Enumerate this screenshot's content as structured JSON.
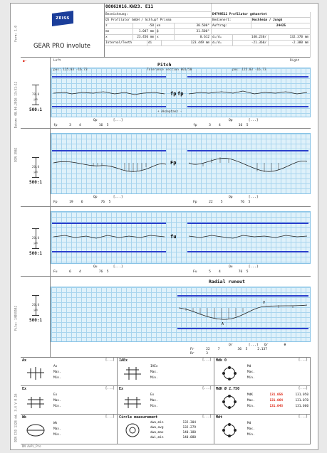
{
  "header": {
    "product": "GEAR PRO involute",
    "logo": "ZEISS",
    "order_id": "08062016.KW23.",
    "order_suffix": "E11",
    "rows": [
      [
        "Bezeichnung:",
        "",
        "D4799511 Profilator gehaertet"
      ],
      [
        "Q5 Profilator GmbH / Schlupf Prisma",
        "",
        "Bedienert:",
        "Hochheim / Jungk"
      ],
      [
        "z",
        "-58",
        "αn",
        "30.500°",
        "Auftrag:",
        "24425"
      ],
      [
        "mn",
        "1.047 mm",
        "β",
        "31.500°",
        "",
        ""
      ],
      [
        "x",
        "23.450 mm",
        "x",
        "0.612",
        "dₐ/dₑ",
        "140.230/",
        "132.370 mm"
      ],
      [
        "Internal/Teeth",
        "di",
        "123.449 mm",
        "dₒ/dₒ",
        "-21.360/",
        "-2.380 mm"
      ]
    ],
    "left": "Left",
    "right": "Right"
  },
  "pitch": {
    "title": "Pitch",
    "subtitle": "Tolerance section 001/50",
    "sub_left": "pos: 125.03   -16.73",
    "sub_right": "pos: 125.03   -16.73",
    "axis_label": "+ Akzeptanz -",
    "symbol": "fp",
    "scale_value": "70.0",
    "scale_unit": "μm",
    "ratio": "500:1",
    "qualities": [
      [
        "Qp",
        "[...]",
        "Qp",
        "[...]"
      ],
      [
        "fp",
        "3",
        "4",
        "16",
        "5",
        "fp",
        "3",
        "4",
        "16",
        "5"
      ]
    ]
  },
  "cum_pitch": {
    "symbol": "Fp",
    "scale_value": "20.0",
    "scale_unit": "μm",
    "ratio": "500:1",
    "qualities": [
      [
        "Qp",
        "[...]",
        "Qp",
        "[...]"
      ],
      [
        "Fp",
        "19",
        "6",
        "76",
        "5",
        "Fp",
        "22",
        "5",
        "76",
        "5"
      ]
    ]
  },
  "runout_pitch": {
    "symbol": "Fu",
    "scale_value": "20.0",
    "scale_unit": "μm",
    "ratio": "500:1",
    "qualities": [
      [
        "Qu",
        "[...]",
        "Qu",
        "[...]"
      ],
      [
        "Fu",
        "6",
        "4",
        "76",
        "5",
        "Fu",
        "5",
        "4",
        "76",
        "5"
      ]
    ]
  },
  "radial": {
    "title": "Radial runout",
    "scale_value": "20.0",
    "scale_unit": "μm",
    "ratio": "500:1",
    "qualities": [
      [
        "Qr",
        "[...]",
        "Qr",
        "θ"
      ],
      [
        "Fr",
        "22",
        "7",
        "36",
        "5",
        "2.137"
      ],
      [
        "Rr",
        "3",
        "",
        ""
      ]
    ]
  },
  "bottom": {
    "cells": [
      {
        "title": "Ax",
        "rows": [
          "Ax",
          "Max.",
          "Min."
        ]
      },
      {
        "title": "IAEx",
        "rows": [
          "IAEx",
          "Max.",
          "Min."
        ]
      },
      {
        "title": "Mdk",
        "extra": "0",
        "rows": [
          "Md",
          "Max.",
          "Min."
        ]
      },
      {
        "title": "Ex",
        "rows": [
          "Ex",
          "Max.",
          "Min."
        ]
      },
      {
        "title": "Ex",
        "rows": [
          "Ex",
          "Max.",
          "Min."
        ]
      },
      {
        "title": "MdK",
        "extra": "Ø 2.750",
        "rows": [
          "MdK",
          "Max.",
          "Min."
        ],
        "values": [
          [
            "131.056",
            "131.050"
          ],
          [
            "131.064",
            "131.070"
          ],
          [
            "131.043",
            "131.060"
          ]
        ]
      },
      {
        "title": "Wk",
        "rows": [
          "Wk",
          "Max.",
          "Min."
        ]
      },
      {
        "title": "Circle measurement",
        "rows": [
          "dwa,min",
          "dwa,avg",
          "dwa,max",
          "dwi,min"
        ],
        "values": [
          [
            "132.304"
          ],
          [
            "132.279"
          ],
          [
            "140.180"
          ],
          [
            "140.080"
          ]
        ]
      },
      {
        "title": "Mdt",
        "rows": [
          "Md",
          "Max.",
          "Min."
        ]
      }
    ],
    "dots": "[...]"
  },
  "side_text": [
    "Form: 1.0",
    "Datum: 08.06.2016 13:51:12",
    "DIN 3962",
    "File: 14059542",
    "DIN ISO 1328 dd. 3.4 V 0.16"
  ],
  "footer": "DN AvPL_Pro"
}
